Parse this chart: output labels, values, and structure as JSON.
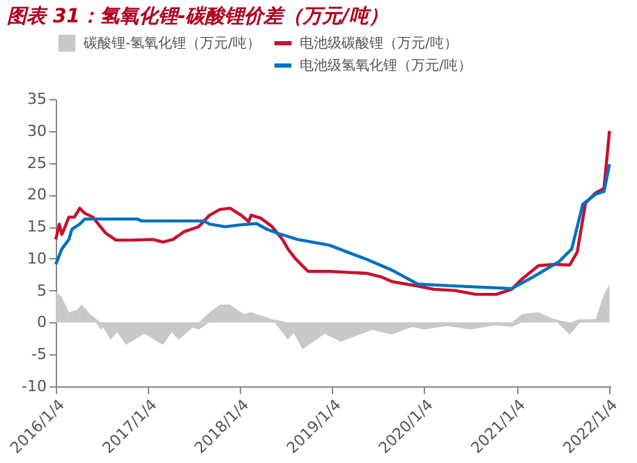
{
  "chart_data": {
    "type": "line",
    "title": "图表 31：氢氧化锂-碳酸锂价差（万元/吨）",
    "xlim": [
      "2016-01-04",
      "2022-01-12"
    ],
    "xticks": [
      {
        "value": "2016-01-04",
        "label": "2016/1/4"
      },
      {
        "value": "2017-01-04",
        "label": "2017/1/4"
      },
      {
        "value": "2018-01-04",
        "label": "2018/1/4"
      },
      {
        "value": "2019-01-04",
        "label": "2019/1/4"
      },
      {
        "value": "2020-01-04",
        "label": "2020/1/4"
      },
      {
        "value": "2021-01-04",
        "label": "2021/1/4"
      },
      {
        "value": "2022-01-04",
        "label": "2022/1/4"
      }
    ],
    "ylim": [
      -10,
      35
    ],
    "yticks": [
      -10,
      -5,
      0,
      5,
      10,
      15,
      20,
      25,
      30,
      35
    ],
    "grid": false,
    "legend": "top",
    "series": [
      {
        "name": "碳酸锂-氢氧化锂（万元/吨）",
        "type": "area",
        "color": "#c8c8c8",
        "x": [
          "2016-01-04",
          "2016-01-28",
          "2016-02-25",
          "2016-03-28",
          "2016-04-17",
          "2016-05-19",
          "2016-06-29",
          "2016-08-08",
          "2016-10-08",
          "2017-03-04",
          "2017-05-05",
          "2017-07-24",
          "2017-09-05",
          "2017-10-16",
          "2017-11-25",
          "2018-01-18",
          "2018-02-17",
          "2018-05-11",
          "2018-07-13",
          "2018-09-09",
          "2019-02-06",
          "2019-08-29",
          "2020-01-04",
          "2020-07-05",
          "2020-12-16",
          "2021-01-26",
          "2021-04-01",
          "2021-06-02",
          "2021-08-03",
          "2021-09-13",
          "2021-11-14",
          "2021-12-17",
          "2022-01-08"
        ],
        "values": [
          4.8,
          4,
          1.6,
          2,
          2.8,
          1.3,
          -1.1,
          -2.7,
          -3.5,
          -3.5,
          -2.7,
          -1.1,
          1.6,
          2.8,
          2.8,
          1.3,
          1.6,
          0.5,
          -2.7,
          -4.2,
          -3,
          -1.9,
          -1.1,
          -1.1,
          -0.7,
          1.3,
          1.6,
          0.5,
          -1.9,
          0.5,
          0.5,
          4.4,
          6
        ]
      },
      {
        "name": "电池级碳酸锂（万元/吨）",
        "type": "line",
        "color": "#c8102e",
        "x": [
          "2016-01-04",
          "2016-01-18",
          "2016-01-28",
          "2016-02-06",
          "2016-02-25",
          "2016-03-18",
          "2016-04-08",
          "2016-04-28",
          "2016-05-30",
          "2016-06-29",
          "2016-07-20",
          "2016-08-30",
          "2016-10-30",
          "2017-01-23",
          "2017-03-04",
          "2017-04-13",
          "2017-05-26",
          "2017-07-24",
          "2017-09-05",
          "2017-10-16",
          "2017-11-25",
          "2018-01-08",
          "2018-02-07",
          "2018-02-17",
          "2018-03-29",
          "2018-05-11",
          "2018-06-21",
          "2018-07-13",
          "2018-08-11",
          "2018-10-01",
          "2018-12-24",
          "2019-05-20",
          "2019-07-20",
          "2019-08-29",
          "2019-12-10",
          "2020-02-11",
          "2020-05-05",
          "2020-07-27",
          "2020-10-16",
          "2020-12-16",
          "2021-01-26",
          "2021-04-01",
          "2021-06-02",
          "2021-08-03",
          "2021-09-02",
          "2021-10-05",
          "2021-11-14",
          "2021-12-17",
          "2022-01-08"
        ],
        "values": [
          13,
          15.4,
          13.8,
          14.6,
          16.5,
          16.5,
          17.9,
          17.1,
          16.5,
          15,
          14,
          12.9,
          12.9,
          13,
          12.6,
          13,
          14.2,
          15,
          16.8,
          17.7,
          17.9,
          16.8,
          15.8,
          16.8,
          16.3,
          15,
          13,
          11.5,
          10,
          8,
          8,
          7.7,
          7.1,
          6.4,
          5.7,
          5.2,
          5,
          4.4,
          4.4,
          5.2,
          6.8,
          8.9,
          9.1,
          9,
          11,
          18.7,
          20.3,
          21,
          30
        ]
      },
      {
        "name": "电池级氢氧化锂（万元/吨）",
        "type": "line",
        "color": "#0070c0",
        "x": [
          "2016-01-04",
          "2016-01-28",
          "2016-02-25",
          "2016-03-08",
          "2016-04-08",
          "2016-04-28",
          "2016-11-22",
          "2016-12-10",
          "2017-08-14",
          "2017-09-05",
          "2017-11-06",
          "2018-01-08",
          "2018-03-10",
          "2018-04-20",
          "2018-05-30",
          "2018-08-20",
          "2018-12-24",
          "2019-05-20",
          "2019-08-29",
          "2019-12-10",
          "2020-03-25",
          "2020-07-05",
          "2020-12-16",
          "2021-03-10",
          "2021-06-21",
          "2021-08-11",
          "2021-09-24",
          "2021-11-14",
          "2021-12-17",
          "2022-01-08"
        ],
        "values": [
          9.1,
          11.5,
          13,
          14.6,
          15.4,
          16.2,
          16.2,
          15.9,
          15.9,
          15.4,
          15,
          15.3,
          15.5,
          14.6,
          14,
          13,
          12.1,
          9.9,
          8.2,
          6,
          5.8,
          5.6,
          5.3,
          7.1,
          9.5,
          11.5,
          18.5,
          20.1,
          20.5,
          24.8
        ]
      }
    ]
  }
}
